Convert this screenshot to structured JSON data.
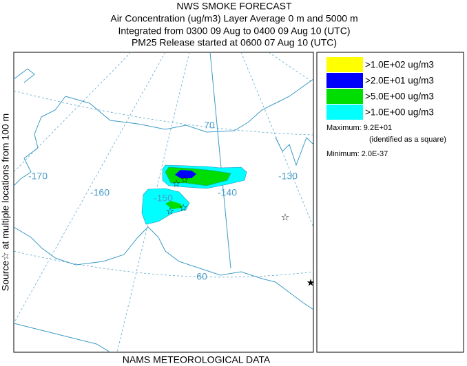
{
  "header": {
    "title_lines": [
      "NWS SMOKE FORECAST",
      "Air Concentration (ug/m3) Layer Average    0 m and  5000 m",
      "Integrated from 0300 09 Aug to 0400 09 Aug 10 (UTC)",
      "PM25 Release started at 0600 07 Aug 10 (UTC)"
    ]
  },
  "side_label": "Source☆ at multiple locations    from   100 m",
  "footer": "NAMS METEOROLOGICAL DATA",
  "legend": {
    "items": [
      {
        "label": ">1.0E+02 ug/m3",
        "color": "#ffff00"
      },
      {
        "label": ">2.0E+01 ug/m3",
        "color": "#0000ff"
      },
      {
        "label": ">5.0E+00 ug/m3",
        "color": "#00dd00"
      },
      {
        "label": ">1.0E+00 ug/m3",
        "color": "#00ffff"
      }
    ],
    "maximum": "Maximum: 9.2E+01",
    "maximum_note": "(identified as a square)",
    "minimum": "Minimum: 2.0E-37"
  },
  "map_labels": {
    "longitudes": [
      "-170",
      "-160",
      "-150",
      "-140",
      "-130"
    ],
    "latitudes": [
      "70",
      "60"
    ]
  }
}
